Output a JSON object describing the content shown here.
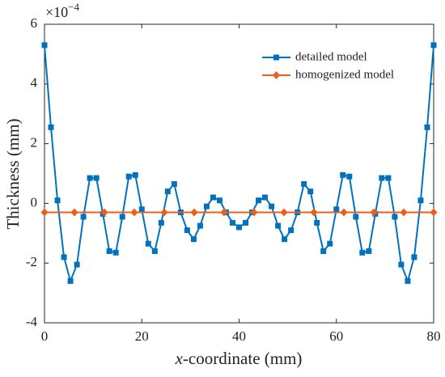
{
  "chart_data": {
    "type": "line",
    "y_label": "Thickness (mm)",
    "x_label_variable": "x",
    "x_label_rest": "-coordinate (mm)",
    "y_multiplier": "×10",
    "y_multiplier_exponent": "−4",
    "xlim": [
      0,
      80
    ],
    "xticks": [
      0,
      20,
      40,
      60,
      80
    ],
    "ylim": [
      -4,
      6
    ],
    "yticks": [
      -4,
      -2,
      0,
      2,
      4,
      6
    ],
    "legend": "upper right",
    "series": [
      {
        "name": "detailed model",
        "color": "#0072bd",
        "marker": "square",
        "x": [
          0,
          1.33,
          2.67,
          4,
          5.33,
          6.67,
          8,
          9.33,
          10.67,
          12,
          13.33,
          14.67,
          16,
          17.33,
          18.67,
          20,
          21.33,
          22.67,
          24,
          25.33,
          26.67,
          28,
          29.33,
          30.67,
          32,
          33.33,
          34.67,
          36,
          37.33,
          38.67,
          40,
          41.33,
          42.67,
          44,
          45.33,
          46.67,
          48,
          49.33,
          50.67,
          52,
          53.33,
          54.67,
          56,
          57.33,
          58.67,
          60,
          61.33,
          62.67,
          64,
          65.33,
          66.67,
          68,
          69.33,
          70.67,
          72,
          73.33,
          74.67,
          76,
          77.33,
          78.67,
          80
        ],
        "values": [
          5.3,
          2.55,
          0.1,
          -1.8,
          -2.6,
          -2.05,
          -0.45,
          0.85,
          0.85,
          -0.35,
          -1.6,
          -1.65,
          -0.45,
          0.9,
          0.95,
          -0.2,
          -1.35,
          -1.6,
          -0.65,
          0.4,
          0.65,
          -0.3,
          -0.9,
          -1.2,
          -0.75,
          -0.1,
          0.2,
          0.1,
          -0.3,
          -0.65,
          -0.8,
          -0.65,
          -0.3,
          0.1,
          0.2,
          -0.1,
          -0.75,
          -1.2,
          -0.9,
          -0.3,
          0.65,
          0.4,
          -0.65,
          -1.6,
          -1.35,
          -0.2,
          0.95,
          0.9,
          -0.45,
          -1.65,
          -1.6,
          -0.35,
          0.85,
          0.85,
          -0.45,
          -2.05,
          -2.6,
          -1.8,
          0.1,
          2.55,
          5.3
        ]
      },
      {
        "name": "homogenized model",
        "color": "#e8601c",
        "marker": "diamond",
        "x": [
          0,
          6.15,
          12.31,
          18.46,
          24.62,
          30.77,
          36.92,
          43.08,
          49.23,
          55.38,
          61.54,
          67.69,
          73.85,
          80
        ],
        "values": [
          -0.3,
          -0.3,
          -0.3,
          -0.3,
          -0.3,
          -0.3,
          -0.3,
          -0.3,
          -0.3,
          -0.3,
          -0.3,
          -0.3,
          -0.3,
          -0.3
        ]
      }
    ]
  }
}
